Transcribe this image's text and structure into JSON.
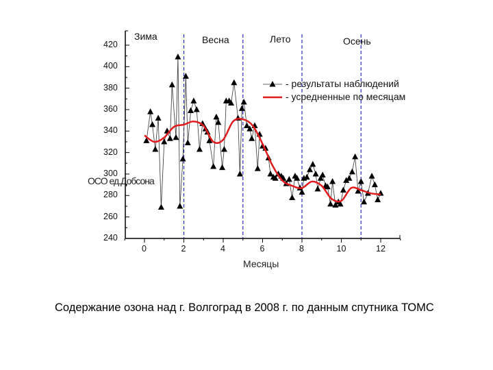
{
  "caption": "Содержание озона над г. Волгоград в 2008 г. по данным спутника ТОМС",
  "chart_data": {
    "type": "line",
    "title": "",
    "xlabel": "Месяцы",
    "ylabel": "ОСО, ед. Добсона",
    "xlim": [
      -1,
      13
    ],
    "ylim": [
      240,
      430
    ],
    "x_ticks": [
      0,
      2,
      4,
      6,
      8,
      10,
      12
    ],
    "y_ticks": [
      240,
      260,
      280,
      300,
      320,
      340,
      360,
      380,
      400,
      420
    ],
    "grid": false,
    "legend_position": "upper right",
    "seasons": [
      {
        "label": "Зима",
        "x_label": 0.3
      },
      {
        "label": "Весна",
        "x_label": 3.7
      },
      {
        "label": "Лето",
        "x_label": 6.9
      },
      {
        "label": "Осень",
        "x_label": 10.0
      }
    ],
    "season_boundaries": [
      2,
      5,
      8,
      11
    ],
    "series": [
      {
        "name": "- результаты наблюдений",
        "style": "black line with triangle markers",
        "color": "#000000",
        "x": [
          0.1,
          0.3,
          0.4,
          0.55,
          0.7,
          0.85,
          1.0,
          1.15,
          1.3,
          1.4,
          1.6,
          1.7,
          1.8,
          1.95,
          2.1,
          2.2,
          2.35,
          2.5,
          2.65,
          2.8,
          2.95,
          3.1,
          3.2,
          3.3,
          3.5,
          3.65,
          3.75,
          3.95,
          4.05,
          4.15,
          4.3,
          4.4,
          4.55,
          4.75,
          4.85,
          4.95,
          5.05,
          5.2,
          5.35,
          5.45,
          5.6,
          5.75,
          5.85,
          6.0,
          6.15,
          6.3,
          6.4,
          6.55,
          6.65,
          6.8,
          6.95,
          7.05,
          7.2,
          7.35,
          7.5,
          7.65,
          7.75,
          7.9,
          8.0,
          8.1,
          8.25,
          8.4,
          8.55,
          8.7,
          8.8,
          8.95,
          9.05,
          9.2,
          9.3,
          9.45,
          9.55,
          9.7,
          9.85,
          9.95,
          10.1,
          10.25,
          10.4,
          10.55,
          10.7,
          10.85,
          11.0,
          11.15,
          11.35,
          11.55,
          11.7,
          11.85,
          12.0
        ],
        "values": [
          331,
          358,
          346,
          323,
          352,
          269,
          330,
          340,
          333,
          383,
          334,
          409,
          270,
          314,
          391,
          329,
          359,
          368,
          360,
          323,
          347,
          342,
          339,
          331,
          307,
          353,
          348,
          306,
          323,
          368,
          368,
          366,
          385,
          352,
          300,
          361,
          367,
          345,
          342,
          333,
          345,
          305,
          337,
          326,
          324,
          315,
          300,
          297,
          296,
          300,
          298,
          296,
          291,
          295,
          278,
          298,
          296,
          287,
          283,
          296,
          297,
          304,
          309,
          300,
          286,
          296,
          299,
          289,
          288,
          272,
          293,
          271,
          274,
          272,
          285,
          294,
          296,
          302,
          316,
          284,
          293,
          274,
          282,
          298,
          290,
          276,
          282
        ]
      },
      {
        "name": "- усредненные по месяцам",
        "style": "smooth red line",
        "color": "#e31a1c",
        "x": [
          0,
          0.5,
          1,
          1.5,
          2,
          2.5,
          3,
          3.5,
          4,
          4.5,
          5,
          5.5,
          6,
          6.5,
          7,
          7.5,
          8,
          8.5,
          9,
          9.5,
          10,
          10.5,
          11,
          11.5,
          12
        ],
        "values": [
          336,
          330,
          334,
          344,
          346,
          349,
          345,
          330,
          332,
          349,
          351,
          345,
          328,
          308,
          294,
          289,
          287,
          293,
          289,
          277,
          275,
          287,
          285,
          282,
          281
        ]
      }
    ]
  },
  "axis": {
    "y_label_garbled": "ОСО ед.Добсона",
    "x_label": "Месяцы",
    "x_ticks": [
      "0",
      "2",
      "4",
      "6",
      "8",
      "10",
      "12"
    ],
    "y_ticks": [
      "420",
      "400",
      "380",
      "360",
      "340",
      "320",
      "300",
      "280",
      "260",
      "240"
    ]
  },
  "legend": {
    "observations": "- результаты наблюдений",
    "monthly_avg": "- усредненные по месяцам"
  },
  "seasons": {
    "winter": "Зима",
    "spring": "Весна",
    "summer": "Лето",
    "autumn": "Осень"
  },
  "colors": {
    "observations": "#000000",
    "average": "#e31a1c",
    "season_line": "#2b2bb0"
  }
}
